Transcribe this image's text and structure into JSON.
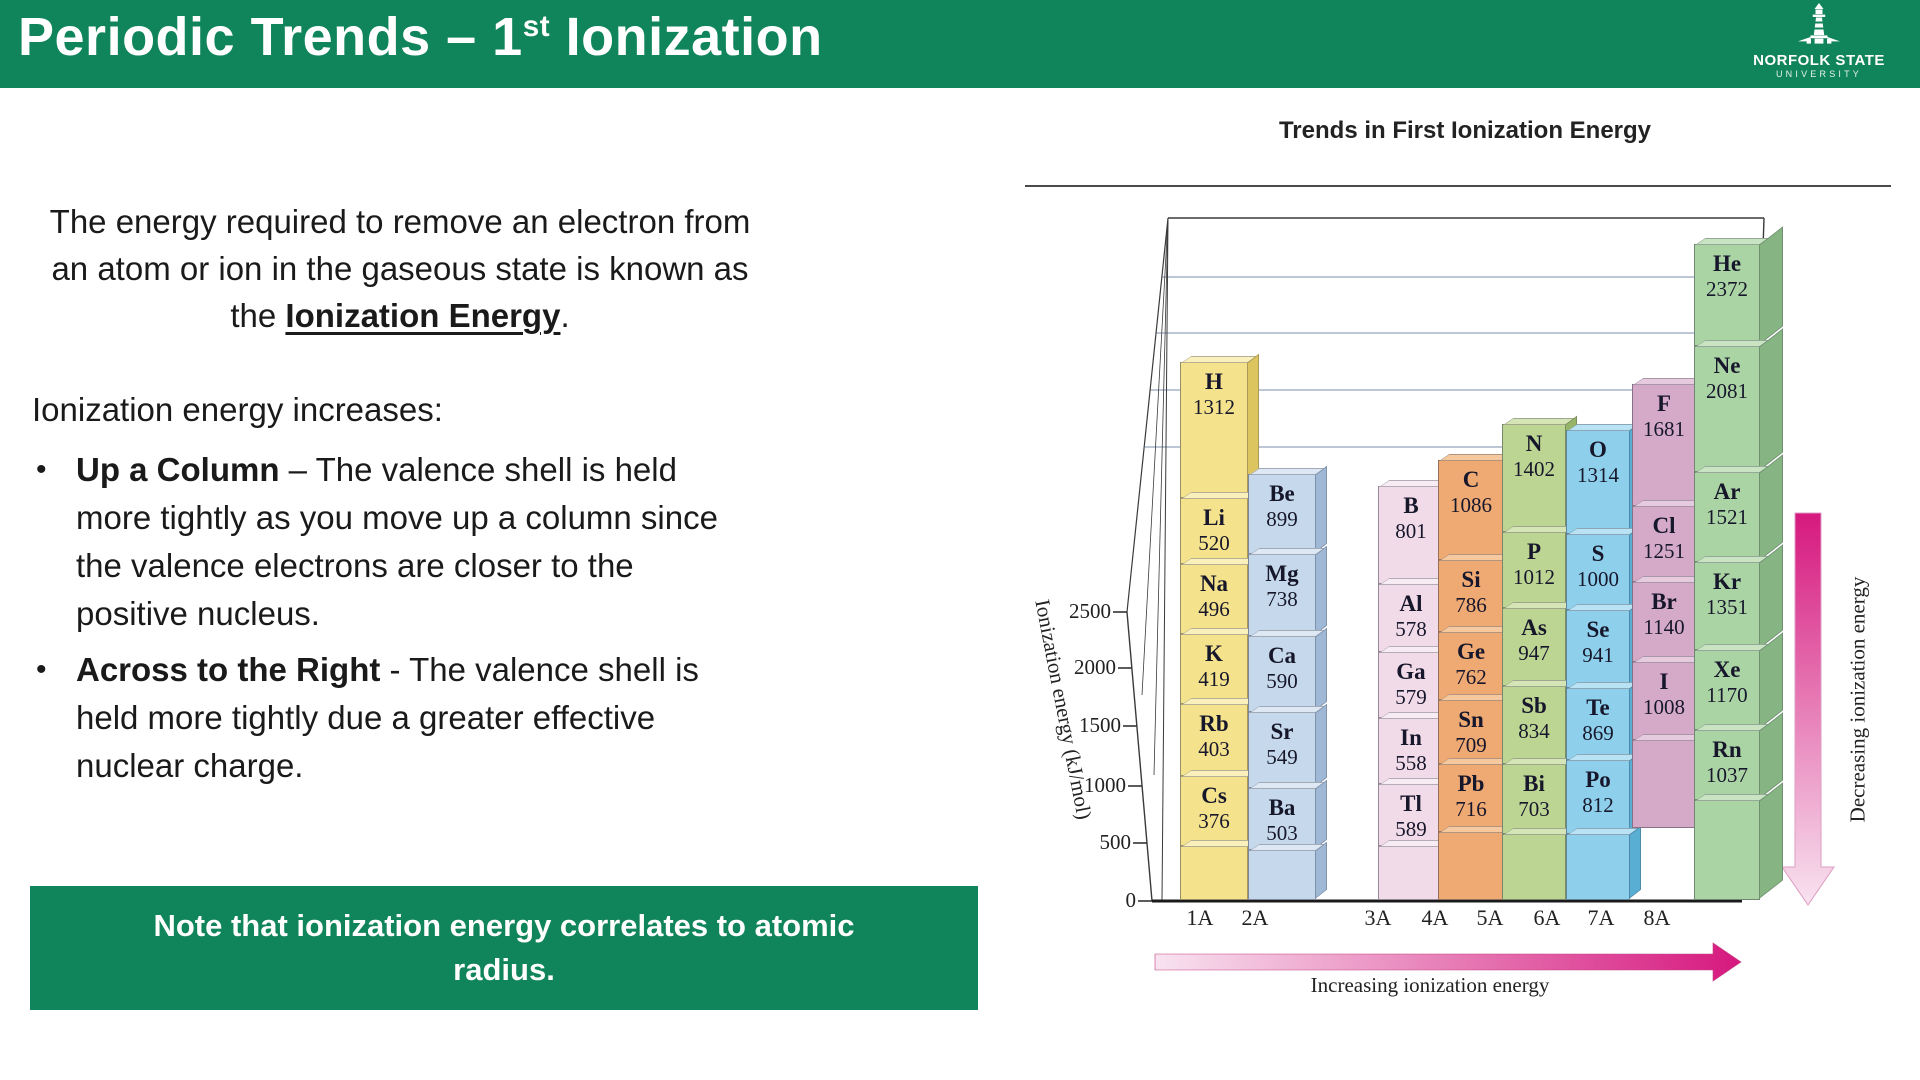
{
  "header": {
    "title_main": "Periodic Trends – 1",
    "title_sup": "st",
    "title_rest": " Ionization",
    "logo_line1": "NORFOLK STATE",
    "logo_line2": "UNIVERSITY"
  },
  "intro": {
    "pre": "The energy required to remove an electron from an atom or ion in the gaseous state is known as the ",
    "em": "Ionization Energy",
    "post": "."
  },
  "increases_heading": "Ionization energy increases:",
  "bullets": [
    {
      "bold": "Up a Column",
      "rest": " – The valence shell is held more tightly as you move up a column since the valence electrons are closer to the positive nucleus."
    },
    {
      "bold": "Across to the Right",
      "rest": " - The valence shell is held more tightly due a greater effective nuclear charge."
    }
  ],
  "note": "Note that ionization energy correlates to atomic radius.",
  "colors": {
    "brand_green": "#10845a",
    "arrow_pink_dark": "#d6187e",
    "arrow_pink_light": "#f8e3f0"
  },
  "chart_data": {
    "type": "bar",
    "title": "Trends in First Ionization Energy",
    "ylabel": "Ionization energy (kJ/mol)",
    "units": "kJ/mol",
    "ylim": [
      0,
      2500
    ],
    "yticks": [
      2500,
      2000,
      1500,
      1000,
      500,
      0
    ],
    "x_axis_groups": [
      "1A",
      "2A",
      "3A",
      "4A",
      "5A",
      "6A",
      "7A",
      "8A"
    ],
    "x_arrow_label": "Increasing ionization energy",
    "y_arrow_label": "Decreasing ionization energy",
    "groups": [
      {
        "label": "1A",
        "colors": {
          "face": "#f4e28c",
          "side": "#dcc55e",
          "top": "#faf0bb"
        },
        "elements": [
          {
            "symbol": "H",
            "value": 1312
          },
          {
            "symbol": "Li",
            "value": 520
          },
          {
            "symbol": "Na",
            "value": 496
          },
          {
            "symbol": "K",
            "value": 419
          },
          {
            "symbol": "Rb",
            "value": 403
          },
          {
            "symbol": "Cs",
            "value": 376
          }
        ]
      },
      {
        "label": "2A",
        "colors": {
          "face": "#c6d8eb",
          "side": "#9fb8d6",
          "top": "#dde8f4"
        },
        "elements": [
          {
            "symbol": "Be",
            "value": 899
          },
          {
            "symbol": "Mg",
            "value": 738
          },
          {
            "symbol": "Ca",
            "value": 590
          },
          {
            "symbol": "Sr",
            "value": 549
          },
          {
            "symbol": "Ba",
            "value": 503
          }
        ]
      },
      {
        "label": "3A",
        "colors": {
          "face": "#f2dbe9",
          "side": "#d8b3cf",
          "top": "#f8ecf4"
        },
        "elements": [
          {
            "symbol": "B",
            "value": 801
          },
          {
            "symbol": "Al",
            "value": 578
          },
          {
            "symbol": "Ga",
            "value": 579
          },
          {
            "symbol": "In",
            "value": 558
          },
          {
            "symbol": "Tl",
            "value": 589
          }
        ]
      },
      {
        "label": "4A",
        "colors": {
          "face": "#efa973",
          "side": "#d08144",
          "top": "#f6c89e"
        },
        "elements": [
          {
            "symbol": "C",
            "value": 1086
          },
          {
            "symbol": "Si",
            "value": 786
          },
          {
            "symbol": "Ge",
            "value": 762
          },
          {
            "symbol": "Sn",
            "value": 709
          },
          {
            "symbol": "Pb",
            "value": 716
          }
        ]
      },
      {
        "label": "5A",
        "colors": {
          "face": "#bdd593",
          "side": "#97b569",
          "top": "#d5e5b6"
        },
        "elements": [
          {
            "symbol": "N",
            "value": 1402
          },
          {
            "symbol": "P",
            "value": 1012
          },
          {
            "symbol": "As",
            "value": 947
          },
          {
            "symbol": "Sb",
            "value": 834
          },
          {
            "symbol": "Bi",
            "value": 703
          }
        ]
      },
      {
        "label": "6A",
        "colors": {
          "face": "#8ed0ec",
          "side": "#58aed3",
          "top": "#b9e3f5"
        },
        "elements": [
          {
            "symbol": "O",
            "value": 1314
          },
          {
            "symbol": "S",
            "value": 1000
          },
          {
            "symbol": "Se",
            "value": 941
          },
          {
            "symbol": "Te",
            "value": 869
          },
          {
            "symbol": "Po",
            "value": 812
          }
        ]
      },
      {
        "label": "7A",
        "colors": {
          "face": "#d4aac8",
          "side": "#b583a9",
          "top": "#e6cade"
        },
        "elements": [
          {
            "symbol": "F",
            "value": 1681
          },
          {
            "symbol": "Cl",
            "value": 1251
          },
          {
            "symbol": "Br",
            "value": 1140
          },
          {
            "symbol": "I",
            "value": 1008
          }
        ]
      },
      {
        "label": "8A",
        "colors": {
          "face": "#abd4a4",
          "side": "#86b583",
          "top": "#c8e4c2"
        },
        "elements": [
          {
            "symbol": "He",
            "value": 2372
          },
          {
            "symbol": "Ne",
            "value": 2081
          },
          {
            "symbol": "Ar",
            "value": 1521
          },
          {
            "symbol": "Kr",
            "value": 1351
          },
          {
            "symbol": "Xe",
            "value": 1170
          },
          {
            "symbol": "Rn",
            "value": 1037
          }
        ]
      }
    ]
  }
}
